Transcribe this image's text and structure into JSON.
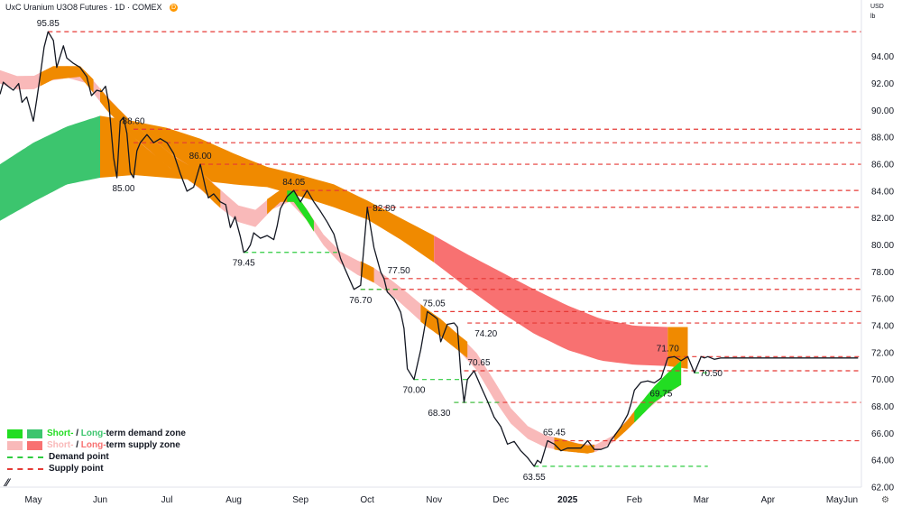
{
  "header": {
    "title": "UxC Uranium U3O8 Futures · 1D · COMEX",
    "badge": "D",
    "currency": "USD",
    "unit": "lb"
  },
  "legend": {
    "demand_zone_short": "Short-",
    "demand_zone_sep": " / ",
    "demand_zone_long": "Long-",
    "demand_zone_rest": "term demand zone",
    "supply_zone_short": "Short-",
    "supply_zone_sep": " / ",
    "supply_zone_long": "Long-",
    "supply_zone_rest": "term supply zone",
    "demand_point": "Demand point",
    "supply_point": "Supply point"
  },
  "colors": {
    "price": "#131722",
    "demand_short": "#22dd22",
    "demand_long": "#3cc56e",
    "supply_short": "#f9b9b9",
    "supply_long": "#f87171",
    "overlap": "#f08a00",
    "demand_point": "#2ecc40",
    "supply_point": "#e53935"
  },
  "chart_data": {
    "type": "line",
    "title": "UxC Uranium U3O8 Futures · 1D · COMEX",
    "ylabel": "USD / lb",
    "ylim": [
      62,
      97
    ],
    "ytick_values": [
      62,
      64,
      66,
      68,
      70,
      72,
      74,
      76,
      78,
      80,
      82,
      84,
      86,
      88,
      90,
      92,
      94
    ],
    "ytick_labels": [
      "62.00",
      "64.00",
      "66.00",
      "68.00",
      "70.00",
      "72.00",
      "74.00",
      "76.00",
      "78.00",
      "80.00",
      "82.00",
      "84.00",
      "86.00",
      "88.00",
      "90.00",
      "92.00",
      "94.00"
    ],
    "xlim": [
      0,
      12.9
    ],
    "xtick_positions": [
      0.5,
      1.5,
      2.5,
      3.5,
      4.5,
      5.5,
      6.5,
      7.5,
      8.5,
      9.5,
      10.5,
      11.5,
      12.5
    ],
    "xtick_labels": [
      "May",
      "Jun",
      "Jul",
      "Aug",
      "Sep",
      "Oct",
      "Nov",
      "Dec",
      "2025",
      "Feb",
      "Mar",
      "Apr",
      "May"
    ],
    "xtick_extra": {
      "position": 13.4,
      "label": "Jun"
    },
    "grid": false,
    "legend_position": "bottom-left",
    "price": {
      "x": [
        0,
        0.05,
        0.12,
        0.2,
        0.28,
        0.33,
        0.4,
        0.5,
        0.55,
        0.6,
        0.66,
        0.72,
        0.8,
        0.85,
        0.95,
        1.0,
        1.1,
        1.2,
        1.3,
        1.37,
        1.45,
        1.52,
        1.58,
        1.63,
        1.7,
        1.75,
        1.8,
        1.85,
        1.9,
        1.95,
        2.0,
        2.05,
        2.1,
        2.2,
        2.3,
        2.4,
        2.5,
        2.6,
        2.7,
        2.8,
        2.9,
        3.0,
        3.08,
        3.12,
        3.2,
        3.3,
        3.38,
        3.45,
        3.52,
        3.6,
        3.65,
        3.7,
        3.75,
        3.8,
        3.9,
        4.0,
        4.1,
        4.15,
        4.2,
        4.3,
        4.4,
        4.5,
        4.6,
        4.7,
        4.8,
        4.9,
        5.0,
        5.1,
        5.15,
        5.3,
        5.4,
        5.5,
        5.6,
        5.7,
        5.75,
        5.8,
        5.9,
        6.0,
        6.05,
        6.1,
        6.2,
        6.3,
        6.4,
        6.5,
        6.55,
        6.6,
        6.7,
        6.8,
        6.85,
        6.9,
        6.95,
        7.0,
        7.1,
        7.2,
        7.3,
        7.4,
        7.5,
        7.6,
        7.7,
        7.8,
        7.9,
        8.0,
        8.05,
        8.1,
        8.2,
        8.3,
        8.4,
        8.5,
        8.6,
        8.7,
        8.8,
        8.9,
        9.0,
        9.1,
        9.15,
        9.2,
        9.3,
        9.4,
        9.45,
        9.5,
        9.6,
        9.7,
        9.8,
        9.9,
        10.0,
        10.1,
        10.2,
        10.3,
        10.4,
        10.5,
        10.55,
        10.6,
        10.7,
        10.8,
        10.85,
        10.9,
        11.0,
        11.1,
        11.2,
        11.3,
        11.4,
        11.5,
        11.6,
        11.7,
        11.8,
        11.9,
        12.0,
        12.1,
        12.2,
        12.3,
        12.4,
        12.45,
        12.5,
        12.55,
        12.6,
        12.7,
        12.75,
        12.8,
        12.85
      ],
      "y": [
        91.2,
        92.1,
        91.8,
        91.5,
        92.0,
        90.6,
        91.0,
        89.2,
        90.8,
        92.5,
        94.7,
        95.85,
        95.2,
        93.2,
        94.8,
        93.9,
        93.5,
        93.2,
        92.5,
        91.1,
        91.5,
        91.4,
        91.8,
        90.5,
        86.5,
        85.0,
        89.2,
        89.5,
        88.3,
        85.4,
        85.0,
        87.0,
        87.6,
        88.2,
        87.6,
        87.9,
        87.6,
        86.8,
        85.3,
        84.0,
        84.3,
        86.0,
        84.2,
        83.5,
        83.8,
        83.2,
        83.0,
        81.3,
        82.1,
        80.6,
        79.45,
        79.6,
        80.0,
        80.9,
        80.5,
        80.7,
        80.4,
        81.4,
        82.7,
        83.6,
        84.05,
        83.2,
        84.05,
        83.2,
        82.5,
        81.7,
        80.8,
        79.0,
        78.4,
        76.7,
        77.0,
        82.8,
        79.8,
        78.0,
        77.5,
        76.5,
        76.0,
        75.0,
        73.8,
        70.8,
        70.0,
        72.2,
        75.05,
        74.7,
        74.5,
        72.8,
        74.1,
        74.2,
        73.9,
        70.5,
        68.3,
        70.0,
        70.65,
        69.5,
        68.4,
        67.2,
        66.5,
        65.2,
        65.4,
        64.7,
        64.2,
        63.55,
        64.0,
        63.8,
        65.45,
        65.2,
        64.7,
        64.9,
        64.9,
        64.9,
        65.45,
        64.8,
        64.8,
        65.0,
        65.5,
        65.8,
        66.5,
        67.4,
        68.2,
        69.2,
        69.8,
        69.9,
        69.75,
        70.1,
        71.6,
        71.7,
        71.4,
        71.7,
        70.5,
        71.7,
        71.6,
        71.7,
        71.5,
        71.6,
        71.6,
        71.6,
        71.6,
        71.6,
        71.6,
        71.6,
        71.6,
        71.6,
        71.6,
        71.6,
        71.6,
        71.6,
        71.6,
        71.6,
        71.6,
        71.6,
        71.6,
        71.6,
        71.6,
        71.6,
        71.6,
        71.6,
        71.6,
        71.6,
        71.6
      ]
    },
    "price_labels": [
      {
        "x": 0.72,
        "y": 95.85,
        "text": "95.85",
        "pos": "above"
      },
      {
        "x": 2.0,
        "y": 88.6,
        "text": "88.60",
        "pos": "above"
      },
      {
        "x": 1.85,
        "y": 85.0,
        "text": "85.00",
        "pos": "below"
      },
      {
        "x": 3.0,
        "y": 86.0,
        "text": "86.00",
        "pos": "above"
      },
      {
        "x": 3.65,
        "y": 79.45,
        "text": "79.45",
        "pos": "below"
      },
      {
        "x": 4.4,
        "y": 84.05,
        "text": "84.05",
        "pos": "above"
      },
      {
        "x": 5.5,
        "y": 82.8,
        "text": "82.80",
        "pos": "right"
      },
      {
        "x": 5.4,
        "y": 76.7,
        "text": "76.70",
        "pos": "below"
      },
      {
        "x": 5.75,
        "y": 77.5,
        "text": "77.50",
        "pos": "aboveright"
      },
      {
        "x": 6.5,
        "y": 75.05,
        "text": "75.05",
        "pos": "above"
      },
      {
        "x": 6.2,
        "y": 70.0,
        "text": "70.00",
        "pos": "below"
      },
      {
        "x": 7.0,
        "y": 74.2,
        "text": "74.20",
        "pos": "belowright"
      },
      {
        "x": 6.95,
        "y": 70.65,
        "text": "70.65",
        "pos": "aboveright"
      },
      {
        "x": 6.8,
        "y": 68.3,
        "text": "68.30",
        "pos": "belowleft"
      },
      {
        "x": 8.3,
        "y": 65.45,
        "text": "65.45",
        "pos": "above"
      },
      {
        "x": 8.0,
        "y": 63.55,
        "text": "63.55",
        "pos": "below"
      },
      {
        "x": 10.0,
        "y": 71.7,
        "text": "71.70",
        "pos": "above"
      },
      {
        "x": 9.9,
        "y": 69.75,
        "text": "69.75",
        "pos": "below"
      },
      {
        "x": 10.4,
        "y": 70.5,
        "text": "70.50",
        "pos": "right"
      }
    ],
    "long_zone_upper": {
      "x": [
        0,
        0.5,
        1.0,
        1.5,
        2.0,
        2.5,
        3.0,
        3.5,
        4.0,
        4.5,
        5.0,
        5.5,
        6.0,
        6.5,
        7.0,
        7.5,
        8.0,
        8.5,
        9.0,
        9.5,
        10.0,
        10.3
      ],
      "y": [
        86.0,
        87.6,
        88.8,
        89.6,
        89.2,
        88.7,
        87.9,
        86.8,
        85.8,
        85.2,
        84.5,
        83.3,
        82.0,
        80.7,
        79.3,
        78.0,
        76.7,
        75.5,
        74.5,
        74.0,
        73.9,
        73.9
      ]
    },
    "long_zone_lower": {
      "x": [
        0,
        0.5,
        1.0,
        1.5,
        2.0,
        2.5,
        3.0,
        3.5,
        4.0,
        4.5,
        5.0,
        5.5,
        6.0,
        6.5,
        7.0,
        7.5,
        8.0,
        8.5,
        9.0,
        9.5,
        10.0,
        10.3
      ],
      "y": [
        81.8,
        83.2,
        84.5,
        85.0,
        85.2,
        85.0,
        84.8,
        84.5,
        84.3,
        83.6,
        82.8,
        81.9,
        80.4,
        78.7,
        76.8,
        75.0,
        73.4,
        72.2,
        71.4,
        71.1,
        71.0,
        70.8
      ]
    },
    "short_zone_upper": {
      "x": [
        0,
        0.4,
        0.8,
        1.2,
        1.4,
        1.6,
        1.8,
        2.0,
        2.2,
        2.4,
        2.6,
        2.8,
        3.0,
        3.2,
        3.4,
        3.6,
        3.8,
        4.0,
        4.2,
        4.4,
        4.6,
        4.8,
        5.0,
        5.2,
        5.4,
        5.6,
        5.8,
        6.0,
        6.2,
        6.4,
        6.6,
        6.8,
        7.0,
        7.2,
        7.4,
        7.6,
        7.8,
        8.0,
        8.2,
        8.4,
        8.6,
        8.8,
        9.0,
        9.2,
        9.4,
        9.6,
        9.8,
        10.0,
        10.2
      ],
      "y": [
        93.0,
        92.3,
        93.3,
        93.3,
        92.3,
        91.0,
        90.0,
        89.0,
        88.2,
        87.4,
        86.6,
        86.0,
        85.5,
        84.5,
        83.7,
        82.8,
        82.5,
        83.4,
        84.1,
        84.0,
        82.6,
        81.0,
        80.0,
        79.0,
        78.8,
        78.3,
        77.6,
        76.9,
        76.0,
        75.2,
        74.5,
        73.6,
        72.8,
        71.6,
        69.9,
        68.2,
        66.9,
        66.2,
        65.8,
        65.6,
        65.3,
        65.1,
        65.2,
        65.9,
        67.0,
        68.3,
        69.5,
        70.5,
        71.4
      ]
    },
    "short_zone_lower": {
      "x": [
        0,
        0.4,
        0.8,
        1.2,
        1.4,
        1.6,
        1.8,
        2.0,
        2.2,
        2.4,
        2.6,
        2.8,
        3.0,
        3.2,
        3.4,
        3.6,
        3.8,
        4.0,
        4.2,
        4.4,
        4.6,
        4.8,
        5.0,
        5.2,
        5.4,
        5.6,
        5.8,
        6.0,
        6.2,
        6.4,
        6.6,
        6.8,
        7.0,
        7.2,
        7.4,
        7.6,
        7.8,
        8.0,
        8.2,
        8.4,
        8.6,
        8.8,
        9.0,
        9.2,
        9.4,
        9.6,
        9.8,
        10.0,
        10.2
      ],
      "y": [
        92.0,
        91.3,
        92.3,
        92.5,
        91.3,
        90.0,
        89.0,
        88.0,
        87.2,
        86.3,
        85.5,
        84.9,
        84.2,
        83.2,
        82.3,
        81.6,
        81.2,
        82.3,
        83.2,
        83.2,
        81.8,
        80.2,
        79.2,
        78.0,
        77.7,
        77.2,
        76.5,
        75.8,
        74.7,
        73.9,
        73.2,
        72.4,
        71.6,
        70.3,
        68.5,
        67.0,
        65.9,
        65.3,
        64.9,
        64.7,
        64.6,
        64.5,
        64.7,
        65.4,
        66.3,
        67.3,
        68.3,
        69.0,
        69.6
      ]
    },
    "overlap_zone_segments": [
      [
        0.6,
        1.4
      ],
      [
        1.5,
        3.3
      ],
      [
        4.0,
        4.7
      ],
      [
        5.4,
        5.6
      ],
      [
        6.3,
        7.0
      ],
      [
        8.3,
        8.9
      ],
      [
        9.2,
        9.6
      ],
      [
        10.0,
        10.2
      ]
    ],
    "demand_zone_short_segments": [
      [
        4.3,
        4.7
      ],
      [
        9.5,
        10.2
      ]
    ],
    "supply_points": [
      {
        "y": 95.85,
        "x_start": 0.72
      },
      {
        "y": 88.6,
        "x_start": 2.0
      },
      {
        "y": 87.6,
        "x_start": 2.0
      },
      {
        "y": 86.0,
        "x_start": 3.0
      },
      {
        "y": 84.05,
        "x_start": 4.4
      },
      {
        "y": 82.8,
        "x_start": 5.5
      },
      {
        "y": 77.5,
        "x_start": 5.75
      },
      {
        "y": 76.7,
        "x_start": 5.4
      },
      {
        "y": 75.05,
        "x_start": 6.5
      },
      {
        "y": 74.2,
        "x_start": 7.0
      },
      {
        "y": 71.7,
        "x_start": 10.0
      },
      {
        "y": 70.65,
        "x_start": 6.95
      },
      {
        "y": 68.3,
        "x_start": 6.8
      },
      {
        "y": 65.45,
        "x_start": 8.3
      }
    ],
    "demand_points": [
      {
        "y": 79.45,
        "x_start": 3.65,
        "x_end": 5.05
      },
      {
        "y": 76.7,
        "x_start": 5.4,
        "x_end": 6.0
      },
      {
        "y": 70.0,
        "x_start": 6.2,
        "x_end": 7.0
      },
      {
        "y": 68.3,
        "x_start": 6.8,
        "x_end": 7.5
      },
      {
        "y": 70.5,
        "x_start": 10.4,
        "x_end": 10.6
      },
      {
        "y": 63.55,
        "x_start": 8.0,
        "x_end": 10.6
      }
    ]
  }
}
